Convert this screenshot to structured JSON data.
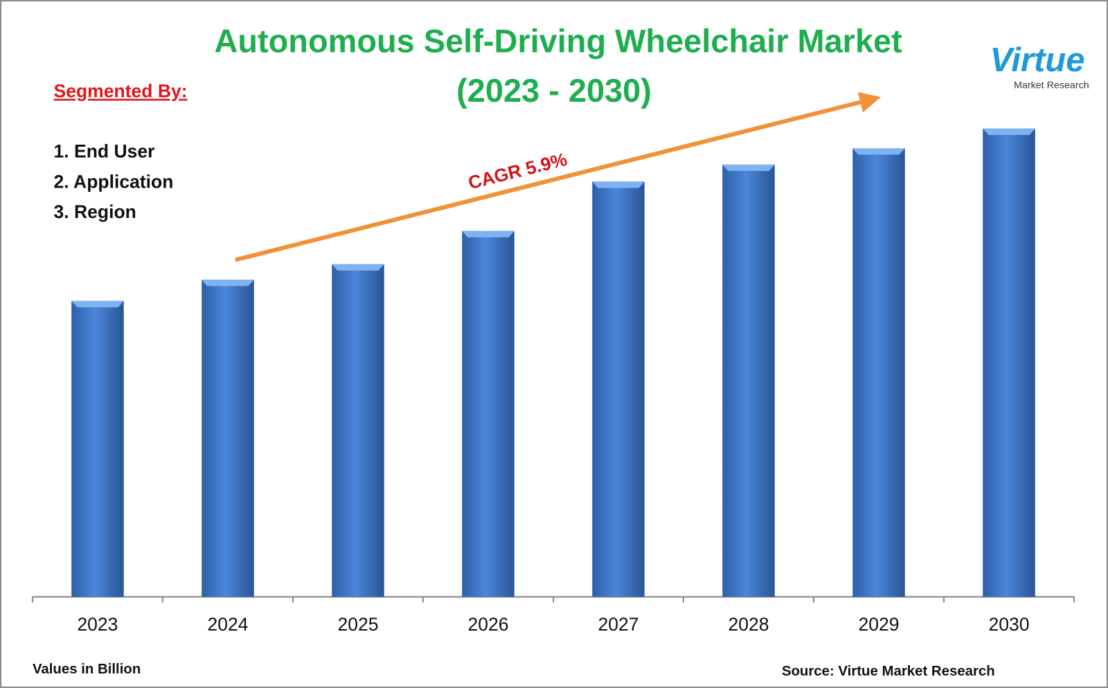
{
  "chart_data": {
    "type": "bar",
    "title": "Autonomous Self-Driving Wheelchair Market",
    "subtitle": "(2023 - 2030)",
    "categories": [
      "2023",
      "2024",
      "2025",
      "2026",
      "2027",
      "2028",
      "2029",
      "2030"
    ],
    "values": [
      4.19,
      4.49,
      4.71,
      5.18,
      5.88,
      6.12,
      6.35,
      6.63
    ],
    "color": "#3a73c9",
    "ylim": [
      0,
      8
    ],
    "annotation": "CAGR 5.9%",
    "unit_note": "Values in Billion",
    "source": "Source: Virtue Market Research"
  },
  "segments": {
    "heading": "Segmented By:",
    "items": [
      "1. End User",
      "2. Application",
      "3. Region"
    ]
  },
  "logo": {
    "name": "Virtue",
    "tagline": "Market Research"
  }
}
